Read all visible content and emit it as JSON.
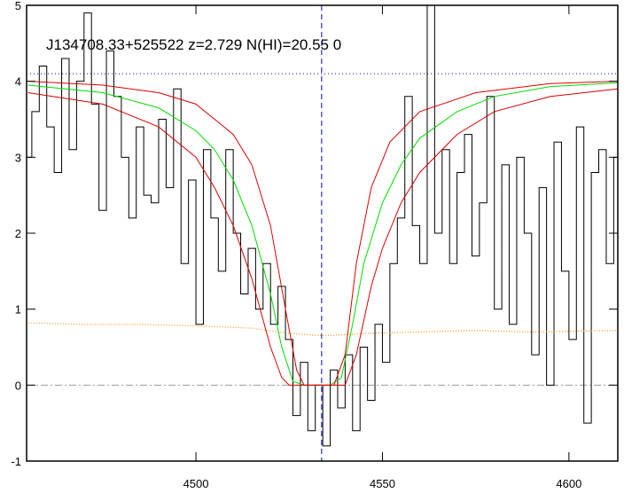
{
  "chart_data": {
    "type": "line",
    "title": "J134708.33+525522 z=2.729 N(HI)=20.55 0",
    "xlim": [
      4454.6,
      4613.1
    ],
    "ylim": [
      -1,
      5
    ],
    "xticks": [
      4500,
      4550,
      4600
    ],
    "yticks": [
      -1,
      0,
      1,
      2,
      3,
      4,
      5
    ],
    "hlines": [
      {
        "value": 4.1,
        "color": "#0000cc",
        "style": "dotted"
      },
      {
        "value": 0,
        "color": "#999999",
        "style": "dashdot"
      }
    ],
    "vlines": [
      {
        "value": 4533.7,
        "color": "#0000cc",
        "style": "dashed"
      }
    ],
    "series": [
      {
        "color": "#000000",
        "drawstyle": "steps",
        "x": [
          4455,
          4457,
          4459,
          4461,
          4463,
          4465,
          4467,
          4469,
          4471,
          4473,
          4475,
          4477,
          4479,
          4481,
          4483,
          4485,
          4487,
          4489,
          4491,
          4493,
          4495,
          4497,
          4499,
          4501,
          4503,
          4505,
          4507,
          4509,
          4511,
          4513,
          4515,
          4517,
          4519,
          4521,
          4523,
          4525,
          4527,
          4529,
          4531,
          4533,
          4535,
          4537,
          4539,
          4541,
          4543,
          4545,
          4547,
          4549,
          4551,
          4553,
          4555,
          4557,
          4559,
          4561,
          4563,
          4565,
          4567,
          4569,
          4571,
          4573,
          4575,
          4577,
          4579,
          4581,
          4583,
          4585,
          4587,
          4589,
          4591,
          4593,
          4595,
          4597,
          4599,
          4601,
          4603,
          4605,
          4607,
          4609,
          4611,
          4613
        ],
        "values": [
          3.0,
          3.6,
          4.2,
          3.4,
          2.8,
          4.3,
          3.1,
          4.0,
          4.9,
          3.7,
          2.3,
          4.4,
          3.8,
          3.0,
          2.2,
          3.4,
          2.5,
          2.4,
          3.5,
          2.6,
          3.9,
          1.6,
          2.7,
          0.8,
          3.1,
          2.2,
          1.5,
          3.1,
          2.0,
          1.2,
          1.8,
          1.0,
          1.6,
          0.8,
          1.3,
          0.6,
          -0.4,
          0.3,
          -0.6,
          0.0,
          -0.8,
          0.2,
          -0.3,
          0.4,
          -0.6,
          0.5,
          -0.2,
          0.8,
          0.3,
          1.6,
          2.2,
          3.8,
          2.1,
          1.6,
          5.0,
          2.0,
          3.1,
          1.6,
          2.8,
          3.3,
          1.7,
          2.4,
          3.8,
          1.0,
          2.9,
          0.8,
          3.0,
          2.0,
          0.4,
          2.6,
          0.0,
          3.2,
          1.5,
          0.6,
          3.4,
          -0.5,
          2.8,
          3.1,
          1.6,
          3.0
        ]
      },
      {
        "color": "#ff8c00",
        "drawstyle": "dotted",
        "x": [
          4455,
          4470,
          4485,
          4500,
          4515,
          4525,
          4535,
          4545,
          4560,
          4575,
          4590,
          4613
        ],
        "values": [
          0.82,
          0.8,
          0.8,
          0.78,
          0.75,
          0.68,
          0.65,
          0.68,
          0.7,
          0.72,
          0.7,
          0.72
        ]
      },
      {
        "color": "#00dd00",
        "x": [
          4455,
          4475,
          4490,
          4500,
          4505,
          4510,
          4515,
          4520,
          4523,
          4526,
          4529,
          4536,
          4539,
          4542,
          4545,
          4550,
          4555,
          4560,
          4570,
          4580,
          4595,
          4613
        ],
        "values": [
          3.95,
          3.85,
          3.65,
          3.35,
          3.1,
          2.7,
          2.1,
          1.2,
          0.5,
          0.05,
          0,
          0,
          0.1,
          0.8,
          1.6,
          2.4,
          2.9,
          3.25,
          3.6,
          3.8,
          3.93,
          3.98
        ]
      },
      {
        "color": "#dd0000",
        "x": [
          4455,
          4475,
          4490,
          4500,
          4510,
          4515,
          4520,
          4524,
          4527,
          4529,
          4537,
          4540,
          4543,
          4547,
          4552,
          4560,
          4575,
          4595,
          4613
        ],
        "values": [
          4.0,
          3.95,
          3.85,
          3.7,
          3.3,
          2.9,
          2.1,
          1.0,
          0.2,
          0,
          0,
          0.4,
          1.6,
          2.6,
          3.2,
          3.6,
          3.85,
          3.97,
          4.0
        ]
      },
      {
        "color": "#dd0000",
        "x": [
          4455,
          4475,
          4490,
          4500,
          4505,
          4510,
          4515,
          4520,
          4523,
          4525,
          4540,
          4543,
          4547,
          4550,
          4555,
          4560,
          4570,
          4580,
          4595,
          4613
        ],
        "values": [
          3.85,
          3.7,
          3.4,
          3.0,
          2.6,
          2.1,
          1.4,
          0.5,
          0.1,
          0,
          0,
          0.4,
          1.3,
          1.8,
          2.4,
          2.8,
          3.3,
          3.6,
          3.8,
          3.9
        ]
      }
    ]
  }
}
